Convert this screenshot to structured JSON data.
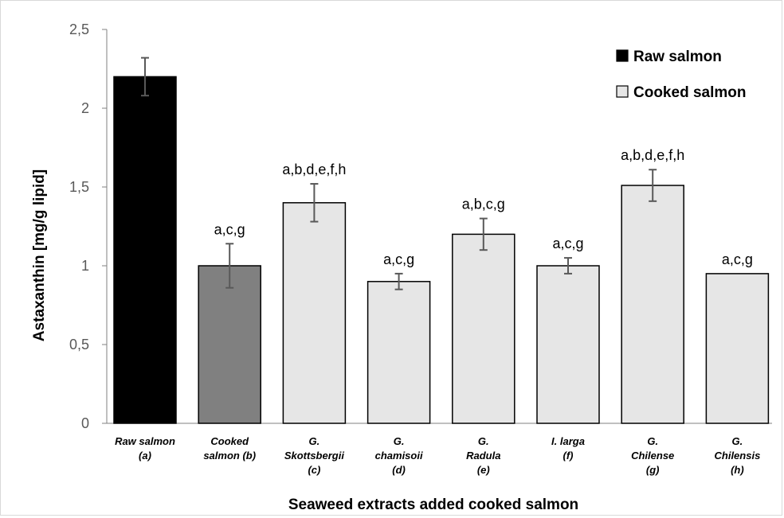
{
  "chart_data": {
    "type": "bar",
    "title": "",
    "xlabel": "Seaweed extracts added cooked salmon",
    "ylabel": "Astaxanthin [mg/g lipid]",
    "ylim": [
      0,
      2.5
    ],
    "yticks": [
      "0",
      "0,5",
      "1",
      "1,5",
      "2",
      "2,5"
    ],
    "ytick_values": [
      0,
      0.5,
      1,
      1.5,
      2,
      2.5
    ],
    "grid": false,
    "legend_position": "top-right",
    "legend": [
      {
        "label": "Raw salmon",
        "color": "#000000"
      },
      {
        "label": "Cooked salmon",
        "color": "#e6e6e6"
      }
    ],
    "categories": [
      [
        "Raw salmon",
        "(a)"
      ],
      [
        "Cooked",
        "salmon (b)"
      ],
      [
        "G.",
        "Skottsbergii",
        "(c)"
      ],
      [
        "G.",
        "chamisoii",
        "(d)"
      ],
      [
        "G.",
        "Radula",
        "(e)"
      ],
      [
        "I. larga",
        "(f)"
      ],
      [
        "G.",
        "Chilense",
        "(g)"
      ],
      [
        "G.",
        "Chilensis",
        "(h)"
      ]
    ],
    "values": [
      2.2,
      1.0,
      1.4,
      0.9,
      1.2,
      1.0,
      1.51,
      0.95
    ],
    "errors": [
      0.12,
      0.14,
      0.12,
      0.05,
      0.1,
      0.05,
      0.1,
      0
    ],
    "bar_colors": [
      "#000000",
      "#808080",
      "#e6e6e6",
      "#e6e6e6",
      "#e6e6e6",
      "#e6e6e6",
      "#e6e6e6",
      "#e6e6e6"
    ],
    "annotations": [
      "",
      "a,c,g",
      "a,b,d,e,f,h",
      "a,c,g",
      "a,b,c,g",
      "a,c,g",
      "a,b,d,e,f,h",
      "a,c,g"
    ]
  }
}
